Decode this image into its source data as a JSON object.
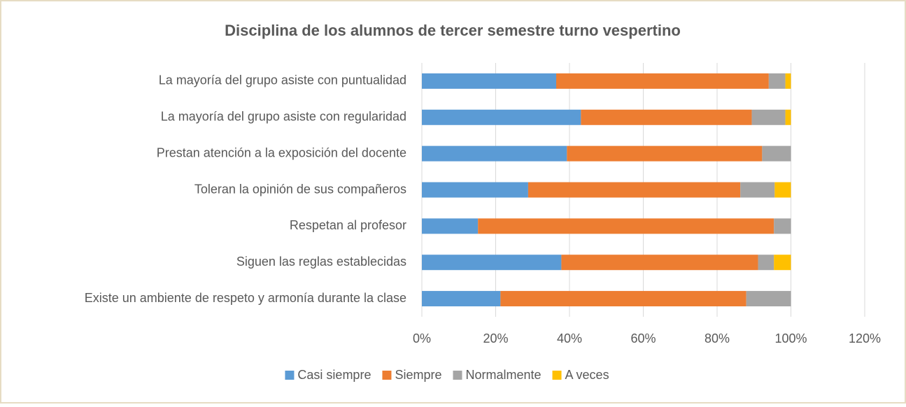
{
  "chart_data": {
    "type": "stacked_barh",
    "title": "Disciplina de los alumnos de tercer semestre turno vespertino",
    "categories": [
      "La mayoría del grupo asiste con puntualidad",
      "La mayoría del grupo asiste con regularidad",
      "Prestan atención a la exposición del docente",
      "Toleran la opinión de sus compañeros",
      "Respetan al profesor",
      "Siguen las reglas establecidas",
      "Existe un ambiente de respeto y armonía durante la clase"
    ],
    "series": [
      {
        "name": "Casi siempre",
        "color": "#5b9bd5",
        "values": [
          36.4,
          43.1,
          39.3,
          28.8,
          15.2,
          37.8,
          21.3
        ]
      },
      {
        "name": "Siempre",
        "color": "#ed7d31",
        "values": [
          57.6,
          46.3,
          52.9,
          57.5,
          80.2,
          53.3,
          66.6
        ]
      },
      {
        "name": "Normalmente",
        "color": "#a5a5a5",
        "values": [
          4.5,
          9.1,
          7.8,
          9.3,
          4.6,
          4.3,
          12.1
        ]
      },
      {
        "name": "A veces",
        "color": "#ffc000",
        "values": [
          1.5,
          1.5,
          0,
          4.4,
          0,
          4.6,
          0
        ]
      }
    ],
    "xlim": [
      0,
      120
    ],
    "xticks": [
      {
        "value": 0,
        "label": "0%"
      },
      {
        "value": 20,
        "label": "20%"
      },
      {
        "value": 40,
        "label": "40%"
      },
      {
        "value": 60,
        "label": "60%"
      },
      {
        "value": 80,
        "label": "80%"
      },
      {
        "value": 100,
        "label": "100%"
      },
      {
        "value": 120,
        "label": "120%"
      }
    ],
    "grid": true,
    "legend": "bottom"
  }
}
